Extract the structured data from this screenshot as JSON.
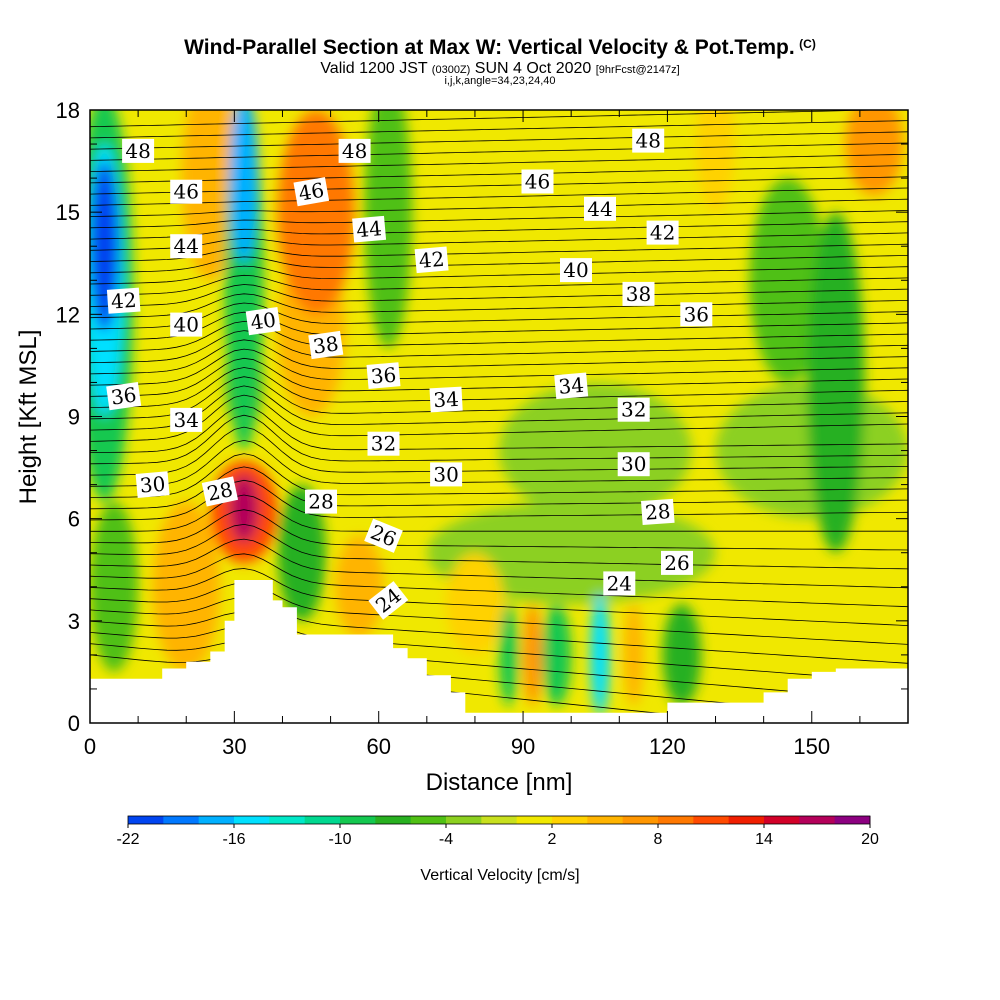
{
  "header": {
    "title": "Wind-Parallel Section at Max W: Vertical Velocity & Pot.Temp.",
    "copyright": "(C)",
    "valid_prefix": "Valid 1200 JST",
    "valid_utc": "(0300Z)",
    "valid_date": "SUN 4 Oct 2020",
    "forecast": "[9hrFcst@2147z]",
    "indices": "i,j,k,angle=34,23,24,40"
  },
  "chart_data": {
    "type": "heatmap",
    "xlabel": "Distance [nm]",
    "ylabel": "Height [Kft MSL]",
    "xlim": [
      0,
      170
    ],
    "ylim": [
      0,
      18
    ],
    "x_ticks": [
      "0",
      "30",
      "60",
      "90",
      "120",
      "150"
    ],
    "y_ticks": [
      "0",
      "3",
      "6",
      "9",
      "12",
      "15",
      "18"
    ],
    "colorbar": {
      "label": "Vertical Velocity [cm/s]",
      "tick_labels": [
        "-22",
        "-16",
        "-10",
        "-4",
        "2",
        "8",
        "14",
        "20"
      ],
      "min": -22,
      "max": 20,
      "step": 2,
      "colors": [
        "#0014d8",
        "#0044f0",
        "#0078ff",
        "#00b0ff",
        "#00e0ff",
        "#00e8c8",
        "#00d890",
        "#14c850",
        "#28b020",
        "#50c014",
        "#8cd020",
        "#c8e01e",
        "#f0e800",
        "#ffd200",
        "#ffb400",
        "#ff9600",
        "#ff7800",
        "#ff4a00",
        "#f01e00",
        "#d20028",
        "#b4005a",
        "#8c0080",
        "#640096"
      ]
    },
    "terrain": [
      [
        0,
        1.3
      ],
      [
        5,
        1.3
      ],
      [
        10,
        1.3
      ],
      [
        15,
        1.6
      ],
      [
        20,
        1.8
      ],
      [
        25,
        2.1
      ],
      [
        28,
        3.0
      ],
      [
        30,
        4.2
      ],
      [
        35,
        4.2
      ],
      [
        38,
        3.6
      ],
      [
        40,
        3.4
      ],
      [
        43,
        2.6
      ],
      [
        50,
        2.6
      ],
      [
        55,
        2.6
      ],
      [
        60,
        2.6
      ],
      [
        63,
        2.2
      ],
      [
        66,
        1.9
      ],
      [
        70,
        1.4
      ],
      [
        75,
        0.9
      ],
      [
        78,
        0.3
      ],
      [
        85,
        0.3
      ],
      [
        95,
        0.3
      ],
      [
        105,
        0.3
      ],
      [
        115,
        0.3
      ],
      [
        120,
        0.6
      ],
      [
        130,
        0.6
      ],
      [
        135,
        0.6
      ],
      [
        140,
        0.9
      ],
      [
        145,
        1.3
      ],
      [
        150,
        1.5
      ],
      [
        155,
        1.6
      ],
      [
        160,
        1.6
      ],
      [
        170,
        1.6
      ]
    ],
    "isentropes": {
      "label_values": [
        "24",
        "26",
        "28",
        "30",
        "32",
        "34",
        "36",
        "38",
        "40",
        "42",
        "44",
        "46",
        "48"
      ]
    },
    "contour_labels": [
      {
        "text": "48",
        "x": 10,
        "y": 16.8,
        "r": 0
      },
      {
        "text": "46",
        "x": 20,
        "y": 15.6,
        "r": 0
      },
      {
        "text": "44",
        "x": 20,
        "y": 14.0,
        "r": 0
      },
      {
        "text": "42",
        "x": 7,
        "y": 12.4,
        "r": -4
      },
      {
        "text": "40",
        "x": 20,
        "y": 11.7,
        "r": 0
      },
      {
        "text": "36",
        "x": 7,
        "y": 9.6,
        "r": -8
      },
      {
        "text": "34",
        "x": 20,
        "y": 8.9,
        "r": 0
      },
      {
        "text": "30",
        "x": 13,
        "y": 7.0,
        "r": -5
      },
      {
        "text": "28",
        "x": 27,
        "y": 6.8,
        "r": -12
      },
      {
        "text": "40",
        "x": 36,
        "y": 11.8,
        "r": -8
      },
      {
        "text": "46",
        "x": 46,
        "y": 15.6,
        "r": -10
      },
      {
        "text": "48",
        "x": 55,
        "y": 16.8,
        "r": 0
      },
      {
        "text": "44",
        "x": 58,
        "y": 14.5,
        "r": -5
      },
      {
        "text": "38",
        "x": 49,
        "y": 11.1,
        "r": -8
      },
      {
        "text": "42",
        "x": 71,
        "y": 13.6,
        "r": -5
      },
      {
        "text": "36",
        "x": 61,
        "y": 10.2,
        "r": -5
      },
      {
        "text": "34",
        "x": 74,
        "y": 9.5,
        "r": -3
      },
      {
        "text": "32",
        "x": 61,
        "y": 8.2,
        "r": 0
      },
      {
        "text": "30",
        "x": 74,
        "y": 7.3,
        "r": 0
      },
      {
        "text": "28",
        "x": 48,
        "y": 6.5,
        "r": 0
      },
      {
        "text": "26",
        "x": 61,
        "y": 5.5,
        "r": 22
      },
      {
        "text": "24",
        "x": 62,
        "y": 3.6,
        "r": -38
      },
      {
        "text": "46",
        "x": 93,
        "y": 15.9,
        "r": 0
      },
      {
        "text": "44",
        "x": 106,
        "y": 15.1,
        "r": 0
      },
      {
        "text": "48",
        "x": 116,
        "y": 17.1,
        "r": 0
      },
      {
        "text": "42",
        "x": 119,
        "y": 14.4,
        "r": 0
      },
      {
        "text": "40",
        "x": 101,
        "y": 13.3,
        "r": 0
      },
      {
        "text": "38",
        "x": 114,
        "y": 12.6,
        "r": 0
      },
      {
        "text": "36",
        "x": 126,
        "y": 12.0,
        "r": 0
      },
      {
        "text": "34",
        "x": 100,
        "y": 9.9,
        "r": -5
      },
      {
        "text": "32",
        "x": 113,
        "y": 9.2,
        "r": 0
      },
      {
        "text": "30",
        "x": 113,
        "y": 7.6,
        "r": 0
      },
      {
        "text": "28",
        "x": 118,
        "y": 6.2,
        "r": -4
      },
      {
        "text": "26",
        "x": 122,
        "y": 4.7,
        "r": 0
      },
      {
        "text": "24",
        "x": 110,
        "y": 4.1,
        "r": 0
      }
    ],
    "w_blobs": [
      {
        "x": 3,
        "y": 14,
        "rx": 3,
        "ry": 2.5,
        "v": -20
      },
      {
        "x": 3,
        "y": 13,
        "rx": 4,
        "ry": 4,
        "v": -14
      },
      {
        "x": 3,
        "y": 12.5,
        "rx": 6,
        "ry": 6,
        "v": -8
      },
      {
        "x": 32,
        "y": 16,
        "rx": 3,
        "ry": 2.5,
        "v": -16
      },
      {
        "x": 32,
        "y": 13,
        "rx": 4,
        "ry": 5,
        "v": -8
      },
      {
        "x": 32,
        "y": 10,
        "rx": 4,
        "ry": 1.5,
        "v": -4
      },
      {
        "x": 25,
        "y": 16,
        "rx": 6,
        "ry": 3,
        "v": 6
      },
      {
        "x": 47,
        "y": 15,
        "rx": 8,
        "ry": 3,
        "v": 10
      },
      {
        "x": 46,
        "y": 11.5,
        "rx": 7,
        "ry": 2.5,
        "v": 6
      },
      {
        "x": 32,
        "y": 6.2,
        "rx": 7,
        "ry": 1.5,
        "v": 12
      },
      {
        "x": 32,
        "y": 6.3,
        "rx": 3,
        "ry": 1,
        "v": 18
      },
      {
        "x": 20,
        "y": 4,
        "rx": 7,
        "ry": 2.5,
        "v": 6
      },
      {
        "x": 5,
        "y": 4,
        "rx": 5,
        "ry": 2.5,
        "v": -4
      },
      {
        "x": 44,
        "y": 5,
        "rx": 5,
        "ry": 2,
        "v": -6
      },
      {
        "x": 56,
        "y": 4,
        "rx": 5,
        "ry": 1.5,
        "v": 6
      },
      {
        "x": 62,
        "y": 15,
        "rx": 5,
        "ry": 4,
        "v": -4
      },
      {
        "x": 87,
        "y": 2,
        "rx": 2,
        "ry": 1.5,
        "v": -8
      },
      {
        "x": 92,
        "y": 2,
        "rx": 2,
        "ry": 1.5,
        "v": 8
      },
      {
        "x": 97,
        "y": 2,
        "rx": 3,
        "ry": 1.5,
        "v": -8
      },
      {
        "x": 106,
        "y": 2,
        "rx": 2,
        "ry": 1.8,
        "v": -14
      },
      {
        "x": 113,
        "y": 2,
        "rx": 2,
        "ry": 1.5,
        "v": 6
      },
      {
        "x": 123,
        "y": 2,
        "rx": 4,
        "ry": 1.5,
        "v": -6
      },
      {
        "x": 80,
        "y": 3.5,
        "rx": 6,
        "ry": 1.5,
        "v": 4
      },
      {
        "x": 105,
        "y": 8,
        "rx": 20,
        "ry": 2,
        "v": -2
      },
      {
        "x": 150,
        "y": 8,
        "rx": 20,
        "ry": 2,
        "v": -2
      },
      {
        "x": 145,
        "y": 13,
        "rx": 8,
        "ry": 3,
        "v": -4
      },
      {
        "x": 155,
        "y": 10,
        "rx": 6,
        "ry": 5,
        "v": -6
      },
      {
        "x": 163,
        "y": 17,
        "rx": 6,
        "ry": 1.5,
        "v": 8
      },
      {
        "x": 130,
        "y": 17,
        "rx": 4,
        "ry": 2,
        "v": 4
      },
      {
        "x": 100,
        "y": 5,
        "rx": 30,
        "ry": 1.5,
        "v": -2
      }
    ]
  }
}
